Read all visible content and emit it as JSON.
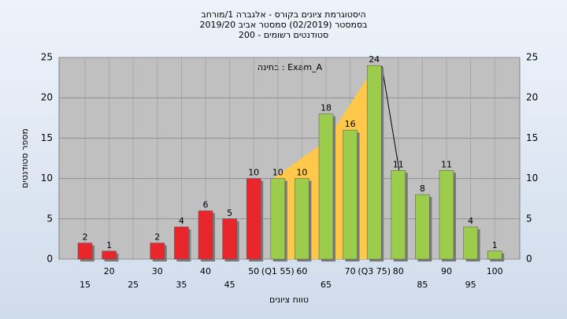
{
  "chart_data": {
    "type": "bar",
    "title": [
      "היסטוגרמת ציונים בקורס - אלגברה 1/מורחב",
      "בסמסטר (02/2019) סמסטר אביב 2019/20",
      "סטודנטים רשומים - 200"
    ],
    "annotation": "בחינה : Exam_A",
    "x_label": "טווח ציונים",
    "y_label": "מספר סטודנטים",
    "categories": [
      "15",
      "20",
      "25",
      "30",
      "35",
      "40",
      "45",
      "50",
      "(Q1 55)",
      "60",
      "65",
      "70",
      "(Q3 75)",
      "80",
      "85",
      "90",
      "95",
      "100"
    ],
    "values": [
      2,
      1,
      0,
      2,
      4,
      6,
      5,
      10,
      10,
      10,
      18,
      16,
      24,
      11,
      8,
      11,
      4,
      1
    ],
    "colors": [
      "#e8262b",
      "#e8262b",
      "#e8262b",
      "#e8262b",
      "#e8262b",
      "#e8262b",
      "#e8262b",
      "#e8262b",
      "#9ccc4c",
      "#9ccc4c",
      "#9ccc4c",
      "#9ccc4c",
      "#9ccc4c",
      "#9ccc4c",
      "#9ccc4c",
      "#9ccc4c",
      "#9ccc4c",
      "#9ccc4c"
    ],
    "ylim": [
      0,
      25
    ],
    "yticks": [
      0,
      5,
      10,
      15,
      20,
      25
    ],
    "grid": true
  }
}
